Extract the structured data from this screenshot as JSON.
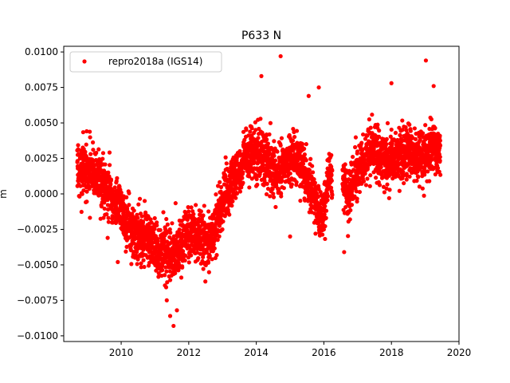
{
  "chart_data": {
    "type": "scatter",
    "title": "P633 N",
    "xlabel": "",
    "ylabel": "m",
    "xlim": [
      2008.3,
      2020.0
    ],
    "ylim": [
      -0.0104,
      0.0104
    ],
    "x_ticks": [
      2010,
      2012,
      2014,
      2016,
      2018,
      2020
    ],
    "x_tick_labels": [
      "2010",
      "2012",
      "2014",
      "2016",
      "2018",
      "2020"
    ],
    "y_ticks": [
      -0.01,
      -0.0075,
      -0.005,
      -0.0025,
      0.0,
      0.0025,
      0.005,
      0.0075,
      0.01
    ],
    "y_tick_labels": [
      "−0.0100",
      "−0.0075",
      "−0.0050",
      "−0.0025",
      "0.0000",
      "0.0025",
      "0.0050",
      "0.0075",
      "0.0100"
    ],
    "grid": false,
    "legend_position": "top-left",
    "series": [
      {
        "name": "repro2018a (IGS14)",
        "color": "#ff0000",
        "marker": "circle",
        "trend": [
          [
            2008.7,
            0.001
          ],
          [
            2008.9,
            0.0018
          ],
          [
            2009.1,
            0.0016
          ],
          [
            2009.3,
            0.0012
          ],
          [
            2009.5,
            0.0004
          ],
          [
            2009.7,
            0.0
          ],
          [
            2009.9,
            -0.0006
          ],
          [
            2010.1,
            -0.0018
          ],
          [
            2010.3,
            -0.0026
          ],
          [
            2010.5,
            -0.003
          ],
          [
            2010.7,
            -0.0028
          ],
          [
            2010.9,
            -0.0034
          ],
          [
            2011.1,
            -0.004
          ],
          [
            2011.3,
            -0.0042
          ],
          [
            2011.5,
            -0.0046
          ],
          [
            2011.7,
            -0.004
          ],
          [
            2011.9,
            -0.003
          ],
          [
            2012.1,
            -0.0026
          ],
          [
            2012.3,
            -0.003
          ],
          [
            2012.5,
            -0.0034
          ],
          [
            2012.7,
            -0.0032
          ],
          [
            2012.9,
            -0.0015
          ],
          [
            2013.1,
            0.0
          ],
          [
            2013.3,
            0.001
          ],
          [
            2013.5,
            0.0016
          ],
          [
            2013.7,
            0.0026
          ],
          [
            2013.9,
            0.003
          ],
          [
            2014.1,
            0.0028
          ],
          [
            2014.3,
            0.0022
          ],
          [
            2014.5,
            0.0018
          ],
          [
            2014.7,
            0.0014
          ],
          [
            2014.9,
            0.0022
          ],
          [
            2015.1,
            0.0025
          ],
          [
            2015.3,
            0.0022
          ],
          [
            2015.5,
            0.001
          ],
          [
            2015.7,
            0.0
          ],
          [
            2015.9,
            -0.0016
          ],
          [
            2016.0,
            -0.001
          ],
          [
            2016.1,
            0.0005
          ],
          [
            2016.2,
            0.0015
          ],
          [
            2016.6,
            0.001
          ],
          [
            2016.7,
            -0.0002
          ],
          [
            2016.8,
            0.0005
          ],
          [
            2016.9,
            0.0012
          ],
          [
            2017.1,
            0.002
          ],
          [
            2017.3,
            0.0028
          ],
          [
            2017.5,
            0.003
          ],
          [
            2017.7,
            0.0025
          ],
          [
            2017.9,
            0.0022
          ],
          [
            2018.1,
            0.0024
          ],
          [
            2018.3,
            0.0028
          ],
          [
            2018.5,
            0.003
          ],
          [
            2018.7,
            0.0026
          ],
          [
            2018.9,
            0.0024
          ],
          [
            2019.1,
            0.003
          ],
          [
            2019.3,
            0.0032
          ],
          [
            2019.45,
            0.003
          ]
        ],
        "gaps": [
          [
            2016.25,
            2016.55
          ]
        ],
        "scatter_sd": 0.0009,
        "outliers": [
          [
            2014.72,
            0.0097
          ],
          [
            2019.02,
            0.0094
          ],
          [
            2014.15,
            0.0083
          ],
          [
            2018.0,
            0.0078
          ],
          [
            2015.85,
            0.0075
          ],
          [
            2015.55,
            0.0069
          ],
          [
            2019.25,
            0.0076
          ],
          [
            2011.55,
            -0.0093
          ],
          [
            2011.45,
            -0.0086
          ],
          [
            2011.65,
            -0.0082
          ],
          [
            2011.35,
            -0.0075
          ],
          [
            2016.6,
            -0.0041
          ],
          [
            2015.0,
            -0.003
          ],
          [
            2009.9,
            -0.0048
          ],
          [
            2009.6,
            -0.0031
          ]
        ]
      }
    ]
  }
}
